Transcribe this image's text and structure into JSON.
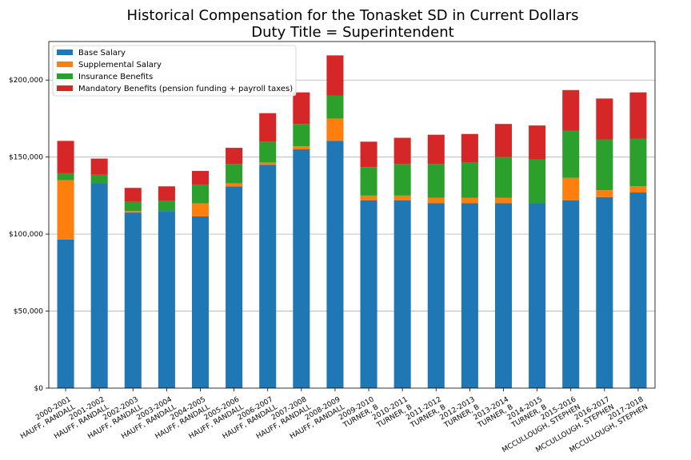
{
  "chart_data": {
    "type": "bar",
    "stacked": true,
    "title": [
      "Historical Compensation for the Tonasket SD in Current Dollars",
      "Duty Title = Superintendent"
    ],
    "xlabel": "",
    "ylabel": "",
    "ylim": [
      0,
      225000
    ],
    "yticks": [
      0,
      50000,
      100000,
      150000,
      200000
    ],
    "ytick_labels": [
      "$0",
      "$50,000",
      "$100,000",
      "$150,000",
      "$200,000"
    ],
    "grid": "horizontal",
    "legend_position": "top-left",
    "categories": [
      [
        "2000-2001",
        "HAUFF, RANDALL"
      ],
      [
        "2001-2002",
        "HAUFF, RANDALL"
      ],
      [
        "2002-2003",
        "HAUFF, RANDALL"
      ],
      [
        "2003-2004",
        "HAUFF, RANDALL"
      ],
      [
        "2004-2005",
        "HAUFF, RANDALL"
      ],
      [
        "2005-2006",
        "HAUFF, RANDALL"
      ],
      [
        "2006-2007",
        "HAUFF, RANDALL"
      ],
      [
        "2007-2008",
        "HAUFF, RANDALL"
      ],
      [
        "2008-2009",
        "HAUFF, RANDALL"
      ],
      [
        "2009-2010",
        "TURNER, B"
      ],
      [
        "2010-2011",
        "TURNER, B"
      ],
      [
        "2011-2012",
        "TURNER, B"
      ],
      [
        "2012-2013",
        "TURNER, B"
      ],
      [
        "2013-2014",
        "TURNER, B"
      ],
      [
        "2014-2015",
        "TURNER, B"
      ],
      [
        "2015-2016",
        "MCCULLOUGH, STEPHEN"
      ],
      [
        "2016-2017",
        "MCCULLOUGH, STEPHEN"
      ],
      [
        "2017-2018",
        "MCCULLOUGH, STEPHEN"
      ]
    ],
    "series": [
      {
        "name": "Base Salary",
        "color": "#1f77b4",
        "values": [
          96500,
          133000,
          114000,
          115000,
          111500,
          131000,
          145000,
          155000,
          160500,
          122000,
          122000,
          120000,
          120000,
          120000,
          120000,
          122000,
          124000,
          127000
        ]
      },
      {
        "name": "Supplemental Salary",
        "color": "#ff7f0e",
        "values": [
          38500,
          0,
          1000,
          0,
          8500,
          2000,
          1500,
          2000,
          14500,
          3000,
          3000,
          3500,
          3500,
          3500,
          0,
          14500,
          4500,
          4000
        ]
      },
      {
        "name": "Insurance Benefits",
        "color": "#2ca02c",
        "values": [
          4500,
          5500,
          6000,
          6500,
          12000,
          12500,
          13500,
          14500,
          15000,
          18500,
          20500,
          22000,
          23000,
          26500,
          28500,
          30500,
          33000,
          31000
        ]
      },
      {
        "name": "Mandatory Benefits (pension funding + payroll taxes)",
        "color": "#d62728",
        "values": [
          21000,
          10500,
          9000,
          9500,
          9000,
          10500,
          18500,
          20500,
          26000,
          16500,
          17000,
          19000,
          18500,
          21500,
          22000,
          26500,
          26500,
          30000
        ]
      }
    ]
  }
}
